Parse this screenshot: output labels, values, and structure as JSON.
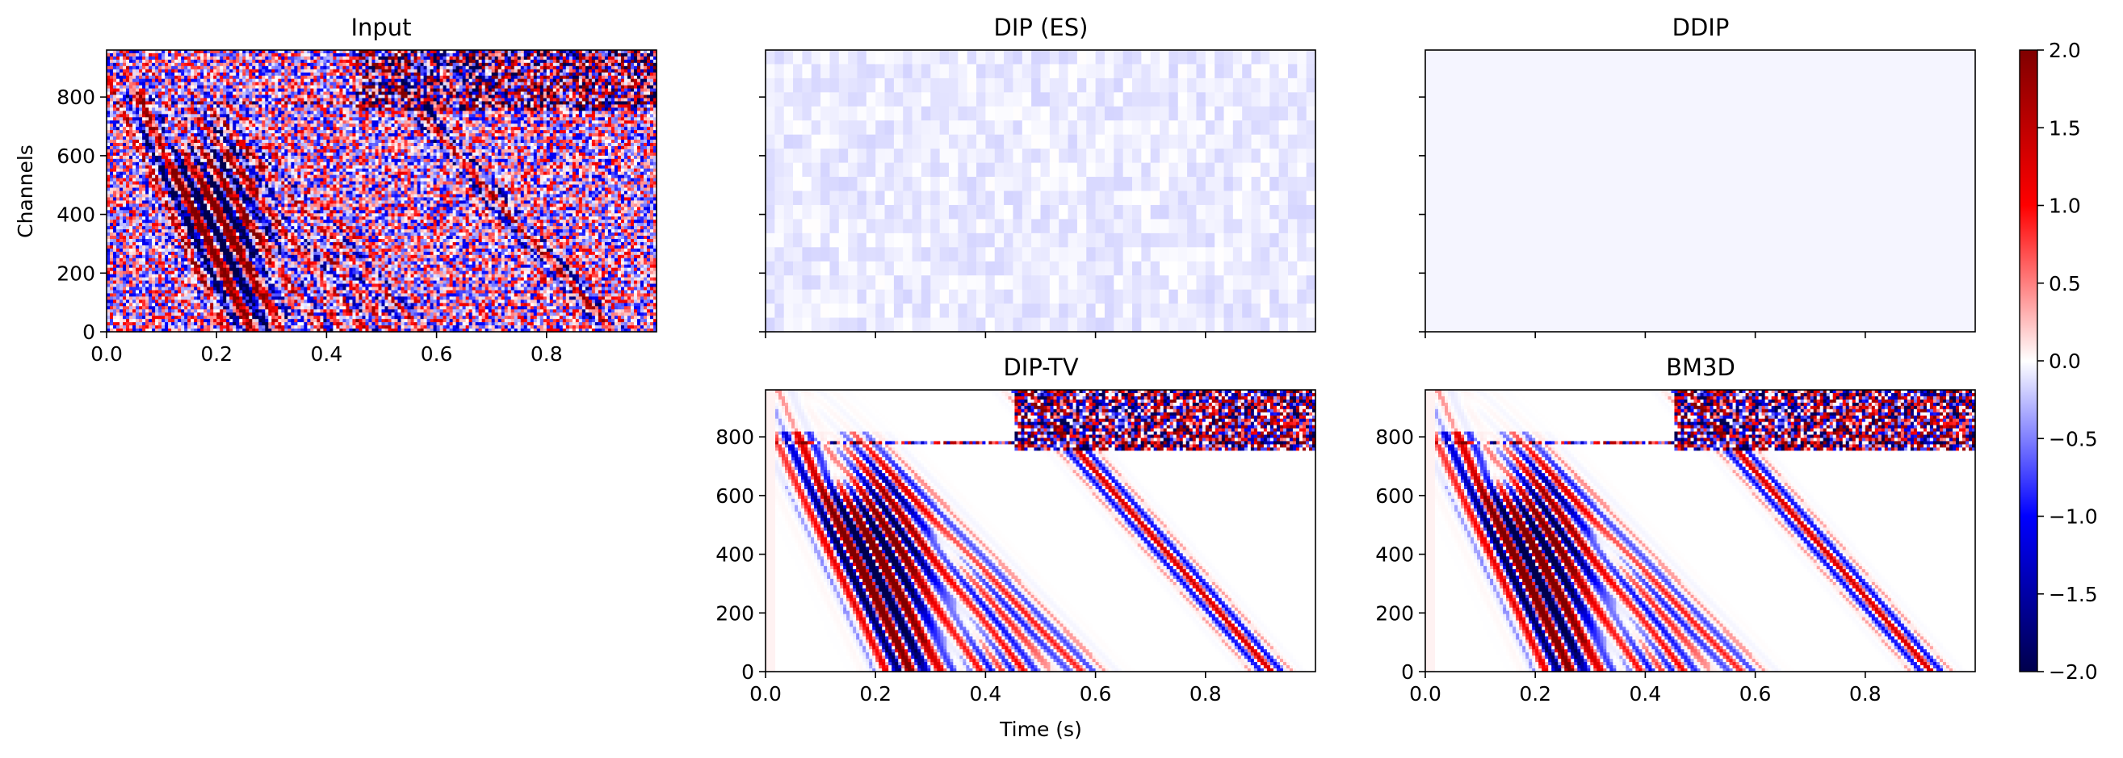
{
  "chart_data": {
    "type": "heatmap",
    "colormap": "seismic",
    "x_label": "Time (s)",
    "y_label": "Channels",
    "xlim": [
      0.0,
      1.0
    ],
    "ylim": [
      0,
      960
    ],
    "x_ticks": [
      "0.0",
      "0.2",
      "0.4",
      "0.6",
      "0.8"
    ],
    "y_ticks": [
      "0",
      "200",
      "400",
      "600",
      "800"
    ],
    "panels": [
      {
        "title": "Input",
        "content": "noisy"
      },
      {
        "title": "DIP (ES)",
        "content": "faint"
      },
      {
        "title": "DDIP",
        "content": "blank"
      },
      {
        "title": "DIP-TV",
        "content": "clean"
      },
      {
        "title": "BM3D",
        "content": "clean"
      }
    ],
    "colorbar": {
      "min": -2.0,
      "max": 2.0,
      "ticks": [
        "2.0",
        "1.5",
        "1.0",
        "0.5",
        "0.0",
        "−0.5",
        "−1.0",
        "−1.5",
        "−2.0"
      ]
    }
  }
}
